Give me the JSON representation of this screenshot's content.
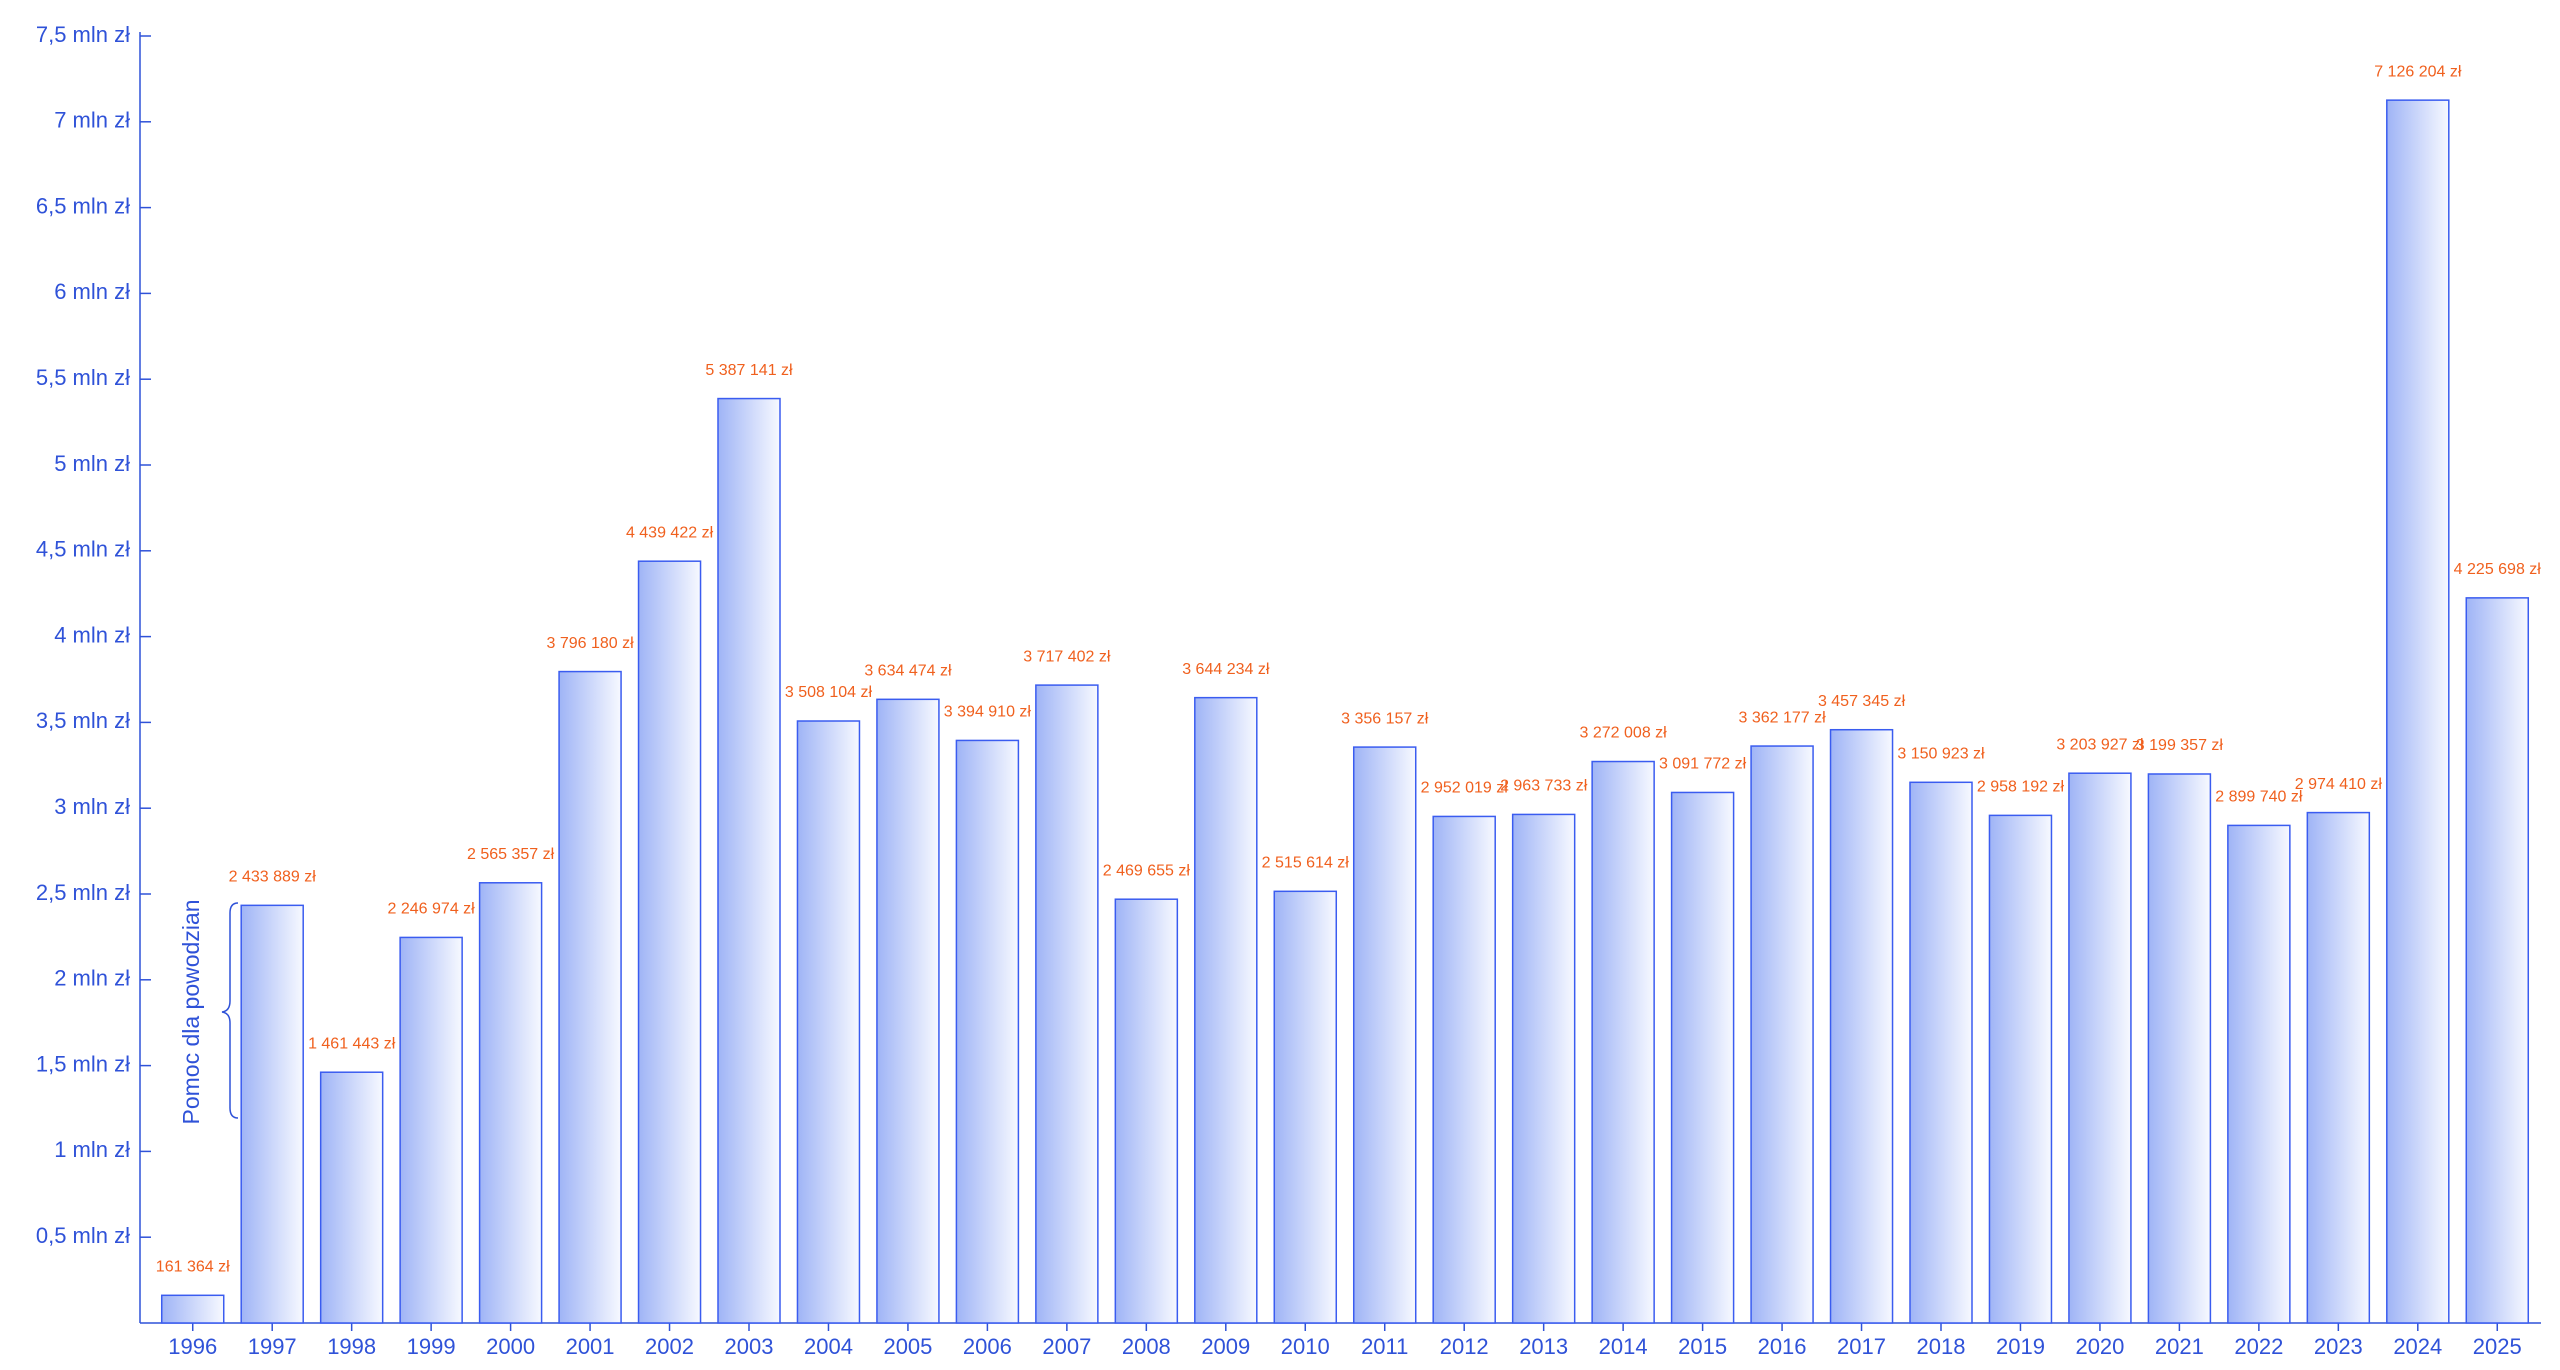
{
  "chart_data": {
    "type": "bar",
    "categories": [
      "1996",
      "1997",
      "1998",
      "1999",
      "2000",
      "2001",
      "2002",
      "2003",
      "2004",
      "2005",
      "2006",
      "2007",
      "2008",
      "2009",
      "2010",
      "2011",
      "2012",
      "2013",
      "2014",
      "2015",
      "2016",
      "2017",
      "2018",
      "2019",
      "2020",
      "2021",
      "2022",
      "2023",
      "2024",
      "2025"
    ],
    "values": [
      161364,
      2433889,
      1461443,
      2246974,
      2565357,
      3796180,
      4439422,
      5387141,
      3508104,
      3634474,
      3394910,
      3717402,
      2469655,
      3644234,
      2515614,
      3356157,
      2952019,
      2963733,
      3272008,
      3091772,
      3362177,
      3457345,
      3150923,
      2958192,
      3203927,
      3199357,
      2899740,
      2974410,
      7126204,
      4225698
    ],
    "value_labels": [
      "161 364 zł",
      "2 433 889 zł",
      "1 461 443 zł",
      "2 246 974 zł",
      "2 565 357 zł",
      "3 796 180 zł",
      "4 439 422 zł",
      "5 387 141 zł",
      "3 508 104 zł",
      "3 634 474 zł",
      "3 394 910 zł",
      "3 717 402 zł",
      "2 469 655 zł",
      "3 644 234 zł",
      "2  515  614 zł",
      "3 356 157 zł",
      "2 952 019 zł",
      "2 963 733 zł",
      "3 272 008 zł",
      "3 091 772 zł",
      "3 362 177 zł",
      "3 457 345 zł",
      "3 150 923 zł",
      "2 958 192 zł",
      "3 203 927 zł",
      "3 199 357 zł",
      "2 899 740 zł",
      "2 974 410 zł",
      "7 126 204 zł",
      "4 225 698 zł"
    ],
    "color": "#3a5cf0",
    "ylim": [
      0,
      7500000
    ],
    "yticks": [
      {
        "value": 500000,
        "label": "0,5 mln zł"
      },
      {
        "value": 1000000,
        "label": "1 mln zł"
      },
      {
        "value": 1500000,
        "label": "1,5 mln zł"
      },
      {
        "value": 2000000,
        "label": "2 mln zł"
      },
      {
        "value": 2500000,
        "label": "2,5 mln zł"
      },
      {
        "value": 3000000,
        "label": "3 mln zł"
      },
      {
        "value": 3500000,
        "label": "3,5 mln zł"
      },
      {
        "value": 4000000,
        "label": "4 mln zł"
      },
      {
        "value": 4500000,
        "label": "4,5 mln zł"
      },
      {
        "value": 5000000,
        "label": "5 mln zł"
      },
      {
        "value": 5500000,
        "label": "5,5 mln zł"
      },
      {
        "value": 6000000,
        "label": "6 mln zł"
      },
      {
        "value": 6500000,
        "label": "6,5 mln zł"
      },
      {
        "value": 7000000,
        "label": "7 mln zł"
      },
      {
        "value": 7500000,
        "label": "7,5 mln zł"
      }
    ],
    "annotation": "Pomoc dla powodzian"
  }
}
